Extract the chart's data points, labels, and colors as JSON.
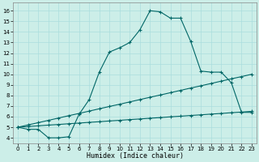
{
  "xlabel": "Humidex (Indice chaleur)",
  "bg_color": "#cceee8",
  "grid_color": "#aadddd",
  "line_color": "#006666",
  "xlim": [
    -0.5,
    23.5
  ],
  "ylim": [
    3.5,
    16.8
  ],
  "xticks": [
    0,
    1,
    2,
    3,
    4,
    5,
    6,
    7,
    8,
    9,
    10,
    11,
    12,
    13,
    14,
    15,
    16,
    17,
    18,
    19,
    20,
    21,
    22,
    23
  ],
  "yticks": [
    4,
    5,
    6,
    7,
    8,
    9,
    10,
    11,
    12,
    13,
    14,
    15,
    16
  ],
  "line1_x": [
    0,
    1,
    2,
    3,
    4,
    5,
    6,
    7,
    8,
    9,
    10,
    11,
    12,
    13,
    14,
    15,
    16,
    17,
    18,
    19,
    20,
    21,
    22,
    23
  ],
  "line1_y": [
    5.0,
    4.8,
    4.8,
    4.0,
    4.0,
    4.1,
    6.2,
    7.6,
    10.2,
    12.1,
    12.5,
    13.0,
    14.2,
    16.0,
    15.9,
    15.3,
    15.3,
    13.1,
    10.3,
    10.2,
    10.2,
    9.2,
    6.4,
    6.4
  ],
  "line2_x": [
    0,
    1,
    2,
    3,
    4,
    5,
    6,
    7,
    8,
    9,
    10,
    11,
    12,
    13,
    14,
    15,
    16,
    17,
    18,
    19,
    20,
    21,
    22,
    23
  ],
  "line2_y": [
    5.0,
    5.07,
    5.13,
    5.2,
    5.26,
    5.33,
    5.39,
    5.46,
    5.52,
    5.59,
    5.65,
    5.72,
    5.78,
    5.85,
    5.91,
    5.98,
    6.04,
    6.11,
    6.17,
    6.24,
    6.3,
    6.37,
    6.43,
    6.5
  ],
  "line3_x": [
    0,
    1,
    2,
    3,
    4,
    5,
    6,
    7,
    8,
    9,
    10,
    11,
    12,
    13,
    14,
    15,
    16,
    17,
    18,
    19,
    20,
    21,
    22,
    23
  ],
  "line3_y": [
    5.0,
    5.22,
    5.43,
    5.65,
    5.87,
    6.09,
    6.3,
    6.52,
    6.74,
    6.96,
    7.17,
    7.39,
    7.61,
    7.83,
    8.04,
    8.26,
    8.48,
    8.7,
    8.91,
    9.13,
    9.35,
    9.57,
    9.78,
    10.0
  ]
}
